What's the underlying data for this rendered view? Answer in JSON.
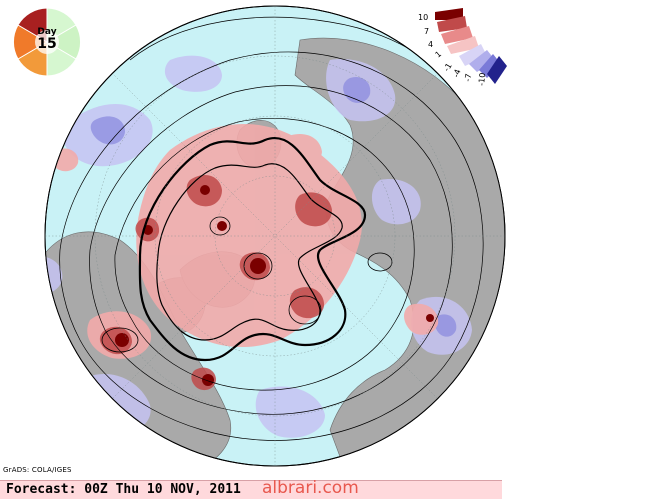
{
  "map": {
    "projection": "north-polar-stereographic",
    "shading_colors": {
      "ocean": "#c9f2f6",
      "land": "#a9a9a9",
      "positive_strong": "#7a0000",
      "positive_medium": "#c04a4a",
      "positive_light": "#f2aaaa",
      "negative_light": "#c6c3f2",
      "negative_medium": "#8f8fe0",
      "negative_strong": "#22228c"
    }
  },
  "legend": {
    "labels": [
      "10",
      "7",
      "4",
      "1",
      "-1",
      "-4",
      "-7",
      "-10"
    ]
  },
  "day_badge": {
    "word": "Day",
    "number": "15"
  },
  "credit": "GrADS: COLA/IGES",
  "footer": {
    "forecast": "Forecast: 00Z Thu 10 NOV, 2011",
    "watermark": "albrari.com"
  }
}
